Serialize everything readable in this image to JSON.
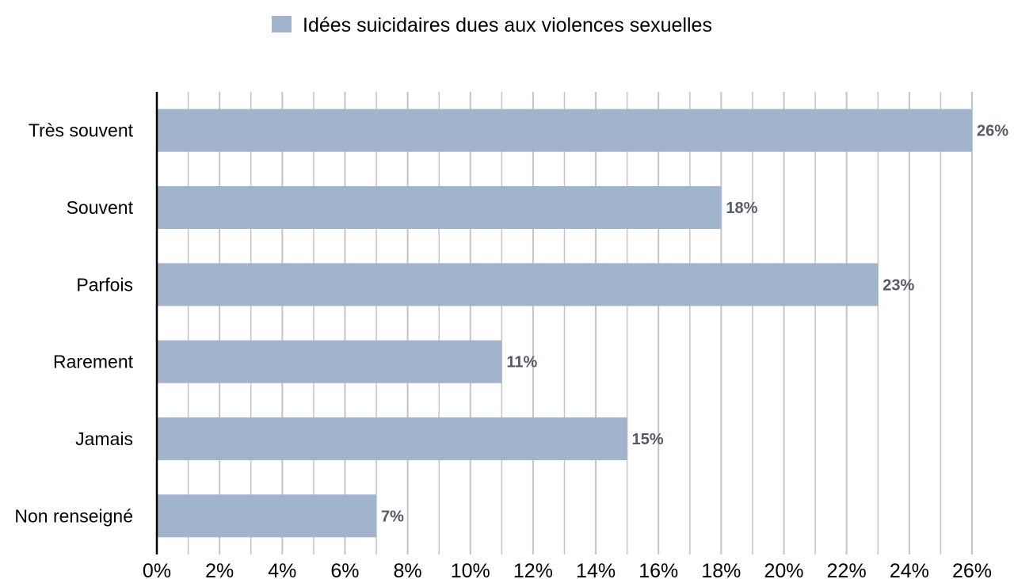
{
  "chart_data": {
    "type": "bar",
    "orientation": "horizontal",
    "categories": [
      "Très souvent",
      "Souvent",
      "Parfois",
      "Rarement",
      "Jamais",
      "Non renseigné"
    ],
    "series": [
      {
        "name": "Idées suicidaires dues aux violences sexuelles",
        "values": [
          26,
          18,
          23,
          11,
          15,
          7
        ],
        "labels": [
          "26%",
          "18%",
          "23%",
          "11%",
          "15%",
          "7%"
        ],
        "color": "#a2b4cb"
      }
    ],
    "title": "",
    "xlabel": "",
    "ylabel": "",
    "xlim": [
      0,
      26
    ],
    "ticks": [
      0,
      2,
      4,
      6,
      8,
      10,
      12,
      14,
      16,
      18,
      20,
      22,
      24,
      26
    ],
    "tick_labels": [
      "0%",
      "2%",
      "4%",
      "6%",
      "8%",
      "10%",
      "12%",
      "14%",
      "16%",
      "18%",
      "20%",
      "22%",
      "24%",
      "26%"
    ],
    "grid": true,
    "legend_position": "top-center",
    "colors": {
      "bar": "#a2b4cb",
      "grid": "#c4c4c4",
      "axis": "#000000",
      "data_label": "#555a66"
    }
  }
}
